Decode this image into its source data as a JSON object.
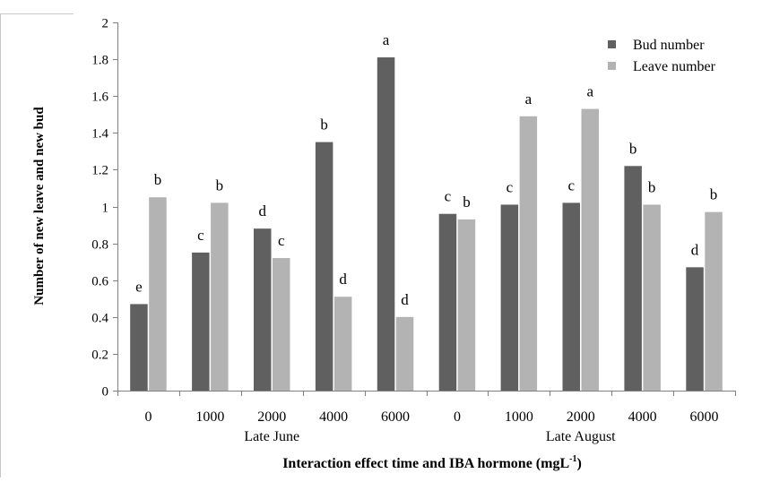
{
  "chart_data": {
    "type": "bar",
    "title": "",
    "ylabel": "Number of new leave and new bud",
    "xlabel_main": "Interaction effect time and IBA hormone (mgL",
    "xlabel_sup": "-1",
    "xlabel_close": ")",
    "ylim": [
      0,
      2
    ],
    "yticks": [
      "0",
      "0.2",
      "0.4",
      "0.6",
      "0.8",
      "1",
      "1.2",
      "1.4",
      "1.6",
      "1.8",
      "2"
    ],
    "categories": [
      "0",
      "1000",
      "2000",
      "4000",
      "6000",
      "0",
      "1000",
      "2000",
      "4000",
      "6000"
    ],
    "groups": [
      {
        "label": "Late June",
        "span": [
          0,
          4
        ]
      },
      {
        "label": "Late August",
        "span": [
          5,
          9
        ]
      }
    ],
    "legend_position": "top-right",
    "grid": false,
    "series": [
      {
        "name": "Bud number",
        "color": "#606060",
        "values": [
          0.47,
          0.75,
          0.88,
          1.35,
          1.81,
          0.96,
          1.01,
          1.02,
          1.22,
          0.67
        ],
        "letters": [
          "e",
          "c",
          "d",
          "b",
          "a",
          "c",
          "c",
          "c",
          "b",
          "d"
        ]
      },
      {
        "name": "Leave number",
        "color": "#b3b3b3",
        "values": [
          1.05,
          1.02,
          0.72,
          0.51,
          0.4,
          0.93,
          1.49,
          1.53,
          1.01,
          0.97
        ],
        "letters": [
          "b",
          "b",
          "c",
          "d",
          "d",
          "b",
          "a",
          "a",
          "b",
          "b"
        ]
      }
    ]
  }
}
